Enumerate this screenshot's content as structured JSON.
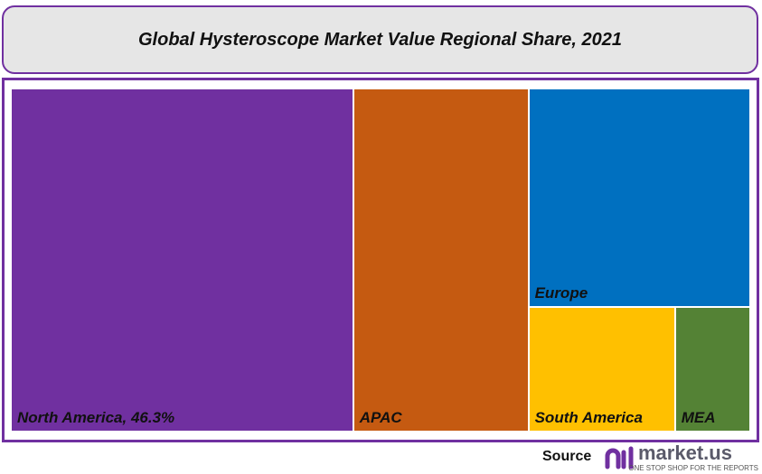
{
  "chart_data": {
    "type": "treemap",
    "title": "Global Hysteroscope Market Value Regional Share, 2021",
    "unit": "%",
    "series": [
      {
        "name": "North America",
        "label": "North America, 46.3%",
        "value": 46.3,
        "color": "#7030a0"
      },
      {
        "name": "APAC",
        "label": "APAC",
        "value": 23.7,
        "color": "#c55a11"
      },
      {
        "name": "Europe",
        "label": "Europe",
        "value": 19.1,
        "color": "#0070c0"
      },
      {
        "name": "South America",
        "label": "South America",
        "value": 7.2,
        "color": "#ffc000"
      },
      {
        "name": "MEA",
        "label": "MEA",
        "value": 3.7,
        "color": "#548235"
      }
    ]
  },
  "footer": {
    "source_label": "Source",
    "brand": "market.us",
    "tagline": "ONE STOP SHOP FOR THE REPORTS"
  },
  "colors": {
    "frame": "#7030a0",
    "title_bg": "#e6e6e6"
  }
}
